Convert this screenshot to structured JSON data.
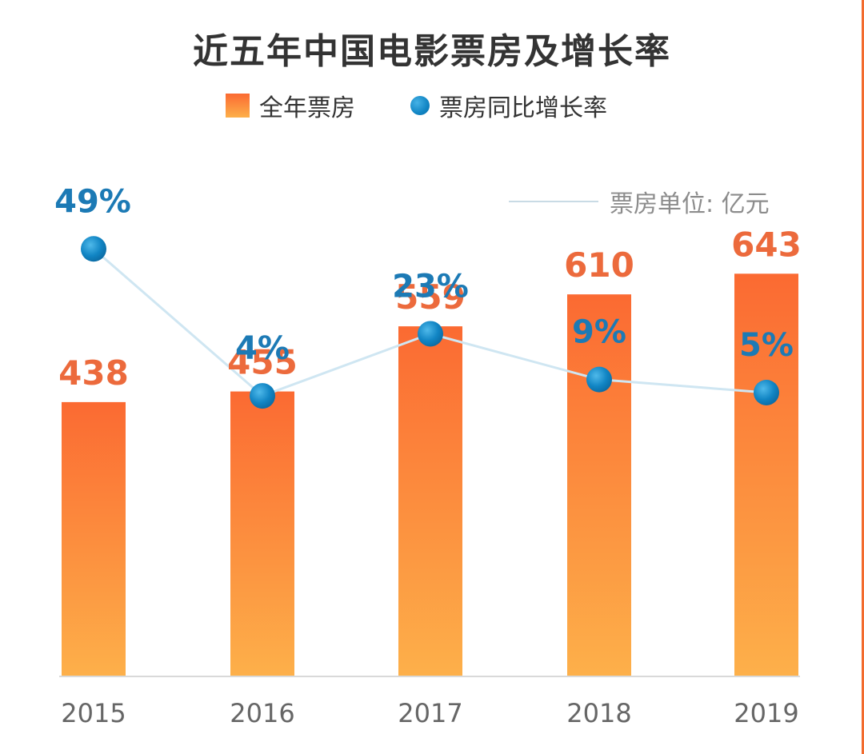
{
  "title": "近五年中国电影票房及增长率",
  "legend": {
    "bar_label": "全年票房",
    "line_label": "票房同比增长率"
  },
  "unit_note": "票房单位: 亿元",
  "colors": {
    "bar_top": "#fb6a32",
    "bar_bottom": "#fdb04a",
    "bar_value_text": "#ec6a3c",
    "dot": "#1185c4",
    "dot_label_text": "#1c7ab5",
    "line": "#cfe6f2",
    "axis": "#d9d9d9",
    "tick_text": "#666666"
  },
  "chart_data": {
    "type": "bar",
    "title": "近五年中国电影票房及增长率",
    "categories": [
      "2015",
      "2016",
      "2017",
      "2018",
      "2019"
    ],
    "series": [
      {
        "name": "全年票房",
        "type": "bar",
        "values": [
          438,
          455,
          559,
          610,
          643
        ],
        "value_labels": [
          "438",
          "455",
          "559",
          "610",
          "643"
        ],
        "unit": "亿元"
      },
      {
        "name": "票房同比增长率",
        "type": "line",
        "values": [
          49,
          4,
          23,
          9,
          5
        ],
        "value_labels": [
          "49%",
          "4%",
          "23%",
          "9%",
          "5%"
        ],
        "unit": "%"
      }
    ],
    "bar_ylim": [
      0,
      1080
    ],
    "line_ylim": [
      -7,
      64
    ],
    "grid": false,
    "legend_position": "top-center"
  }
}
